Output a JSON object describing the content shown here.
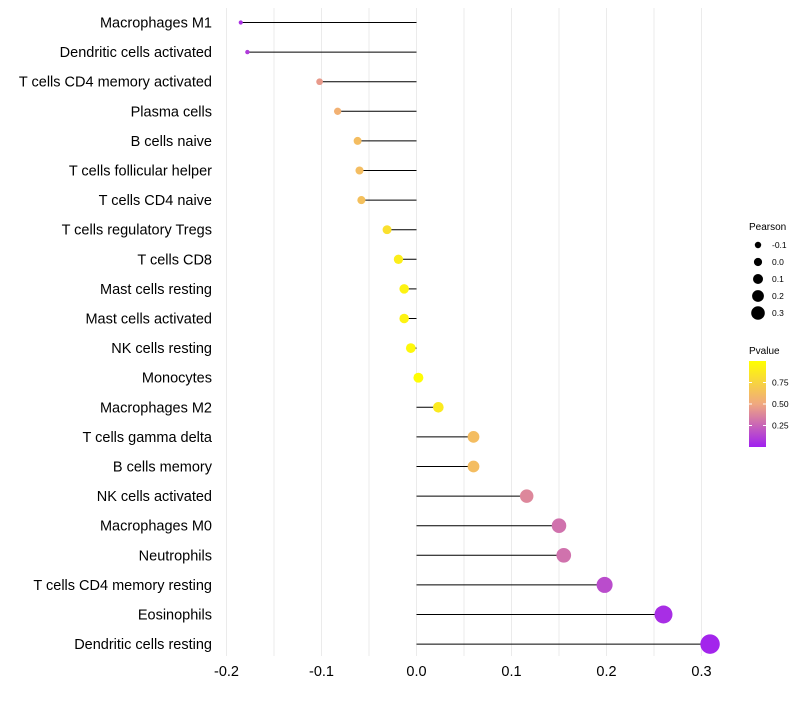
{
  "chart_data": {
    "type": "lollipop",
    "title": "",
    "xlabel": "",
    "ylabel": "",
    "xlim": [
      -0.2,
      0.32
    ],
    "xticks": [
      -0.2,
      -0.1,
      0.0,
      0.1,
      0.2,
      0.3
    ],
    "xtick_labels": [
      "-0.2",
      "-0.1",
      "0.0",
      "0.1",
      "0.2",
      "0.3"
    ],
    "grid": "vertical",
    "categories": [
      "Macrophages M1",
      "Dendritic cells activated",
      "T cells CD4 memory activated",
      "Plasma cells",
      "B cells naive",
      "T cells follicular helper",
      "T cells CD4 naive",
      "T cells regulatory  Tregs ",
      "T cells CD8",
      "Mast cells resting",
      "Mast cells activated",
      "NK cells resting",
      "Monocytes",
      "Macrophages M2",
      "T cells gamma delta",
      "B cells memory",
      "NK cells activated",
      "Macrophages M0",
      "Neutrophils",
      "T cells CD4 memory resting",
      "Eosinophils",
      "Dendritic cells resting"
    ],
    "pearson": [
      -0.185,
      -0.178,
      -0.102,
      -0.083,
      -0.062,
      -0.06,
      -0.058,
      -0.031,
      -0.019,
      -0.013,
      -0.013,
      -0.006,
      0.002,
      0.023,
      0.06,
      0.06,
      0.116,
      0.15,
      0.155,
      0.198,
      0.26,
      0.309
    ],
    "pvalue": [
      0.06,
      0.1,
      0.45,
      0.55,
      0.62,
      0.62,
      0.64,
      0.82,
      0.9,
      0.93,
      0.93,
      0.96,
      0.99,
      0.88,
      0.62,
      0.62,
      0.38,
      0.3,
      0.3,
      0.16,
      0.05,
      0.02
    ],
    "legend": {
      "position": "right",
      "size_title": "Pearson",
      "size_values": [
        -0.1,
        0.0,
        0.1,
        0.2,
        0.3
      ],
      "size_labels": [
        "-0.1",
        "0.0",
        "0.1",
        "0.2",
        "0.3"
      ],
      "color_title": "Pvalue",
      "color_range": [
        0.0,
        1.0
      ],
      "color_ticks": [
        0.25,
        0.5,
        0.75
      ],
      "color_tick_labels": [
        "0.25",
        "0.50",
        "0.75"
      ],
      "color_low": "#A020F0",
      "color_mid": "#F0A880",
      "color_high": "#FFFF00"
    },
    "stem_color": "#000000",
    "grid_color": "#EBEBEB"
  }
}
